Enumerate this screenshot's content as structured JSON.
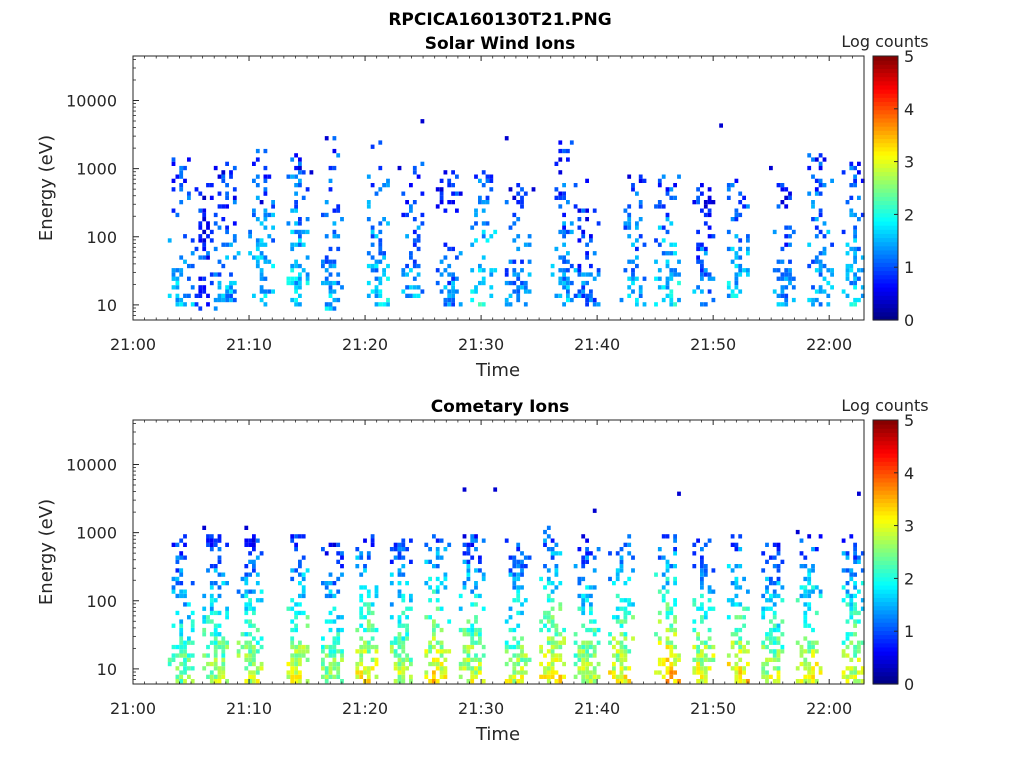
{
  "figure": {
    "title": "RPCICA160130T21.PNG"
  },
  "colors": {
    "axis": "#262626",
    "colormap": "jet"
  },
  "chart_data": [
    {
      "type": "heatmap",
      "title": "Solar Wind Ions",
      "xlabel": "Time",
      "ylabel": "Energy (eV)",
      "y_scale": "log",
      "ylim": [
        6,
        45000
      ],
      "xlim": [
        "21:00",
        "22:03"
      ],
      "x_ticks": [
        "21:00",
        "21:10",
        "21:20",
        "21:30",
        "21:40",
        "21:50",
        "22:00"
      ],
      "y_ticks": [
        "10",
        "100",
        "1000",
        "10000"
      ],
      "colorbar": {
        "label": "Log counts",
        "range": [
          0,
          5
        ],
        "ticks": [
          "0",
          "1",
          "2",
          "3",
          "4",
          "5"
        ]
      },
      "data_time_range": [
        "21:03",
        "22:03"
      ],
      "events": [
        {
          "time": "21:04",
          "energy_range": [
            10,
            1500
          ],
          "intensity": 1.4
        },
        {
          "time": "21:06",
          "energy_range": [
            8,
            600
          ],
          "intensity": 1.0
        },
        {
          "time": "21:08",
          "energy_range": [
            10,
            1200
          ],
          "intensity": 1.3
        },
        {
          "time": "21:11",
          "energy_range": [
            10,
            2000
          ],
          "intensity": 1.5
        },
        {
          "time": "21:14",
          "energy_range": [
            10,
            1800
          ],
          "intensity": 1.6
        },
        {
          "time": "21:17",
          "energy_range": [
            8,
            3000
          ],
          "intensity": 1.4
        },
        {
          "time": "21:21",
          "energy_range": [
            10,
            2500
          ],
          "intensity": 1.5
        },
        {
          "time": "21:24",
          "energy_range": [
            12,
            1500
          ],
          "intensity": 1.3
        },
        {
          "time": "21:27",
          "energy_range": [
            10,
            1000
          ],
          "intensity": 1.2
        },
        {
          "time": "21:30",
          "energy_range": [
            10,
            900
          ],
          "intensity": 1.7
        },
        {
          "time": "21:33",
          "energy_range": [
            10,
            700
          ],
          "intensity": 1.2
        },
        {
          "time": "21:37",
          "energy_range": [
            10,
            2500
          ],
          "intensity": 1.3
        },
        {
          "time": "21:39",
          "energy_range": [
            10,
            700
          ],
          "intensity": 1.1
        },
        {
          "time": "21:43",
          "energy_range": [
            10,
            900
          ],
          "intensity": 1.4
        },
        {
          "time": "21:46",
          "energy_range": [
            10,
            800
          ],
          "intensity": 1.6
        },
        {
          "time": "21:49",
          "energy_range": [
            10,
            600
          ],
          "intensity": 1.2
        },
        {
          "time": "21:52",
          "energy_range": [
            12,
            700
          ],
          "intensity": 1.5
        },
        {
          "time": "21:56",
          "energy_range": [
            10,
            700
          ],
          "intensity": 1.2
        },
        {
          "time": "21:59",
          "energy_range": [
            10,
            2000
          ],
          "intensity": 1.4
        },
        {
          "time": "22:02",
          "energy_range": [
            10,
            1200
          ],
          "intensity": 1.5
        }
      ]
    },
    {
      "type": "heatmap",
      "title": "Cometary Ions",
      "xlabel": "Time",
      "ylabel": "Energy (eV)",
      "y_scale": "log",
      "ylim": [
        6,
        45000
      ],
      "xlim": [
        "21:00",
        "22:03"
      ],
      "x_ticks": [
        "21:00",
        "21:10",
        "21:20",
        "21:30",
        "21:40",
        "21:50",
        "22:00"
      ],
      "y_ticks": [
        "10",
        "100",
        "1000",
        "10000"
      ],
      "colorbar": {
        "label": "Log counts",
        "range": [
          0,
          5
        ],
        "ticks": [
          "0",
          "1",
          "2",
          "3",
          "4",
          "5"
        ]
      },
      "data_time_range": [
        "21:03",
        "22:03"
      ],
      "events": [
        {
          "time": "21:04",
          "energy_range": [
            6,
            900
          ],
          "intensity": 2.0
        },
        {
          "time": "21:07",
          "energy_range": [
            6,
            1000
          ],
          "intensity": 2.2
        },
        {
          "time": "21:10",
          "energy_range": [
            6,
            900
          ],
          "intensity": 2.3
        },
        {
          "time": "21:14",
          "energy_range": [
            6,
            1000
          ],
          "intensity": 2.4
        },
        {
          "time": "21:17",
          "energy_range": [
            6,
            700
          ],
          "intensity": 2.2
        },
        {
          "time": "21:20",
          "energy_range": [
            6,
            1000
          ],
          "intensity": 2.5
        },
        {
          "time": "21:23",
          "energy_range": [
            6,
            800
          ],
          "intensity": 2.3
        },
        {
          "time": "21:26",
          "energy_range": [
            6,
            1000
          ],
          "intensity": 2.6
        },
        {
          "time": "21:29",
          "energy_range": [
            6,
            900
          ],
          "intensity": 2.4
        },
        {
          "time": "21:33",
          "energy_range": [
            6,
            800
          ],
          "intensity": 2.3
        },
        {
          "time": "21:36",
          "energy_range": [
            6,
            1200
          ],
          "intensity": 2.6
        },
        {
          "time": "21:39",
          "energy_range": [
            6,
            900
          ],
          "intensity": 2.3
        },
        {
          "time": "21:42",
          "energy_range": [
            6,
            1000
          ],
          "intensity": 2.5
        },
        {
          "time": "21:46",
          "energy_range": [
            6,
            900
          ],
          "intensity": 2.8
        },
        {
          "time": "21:49",
          "energy_range": [
            6,
            800
          ],
          "intensity": 2.5
        },
        {
          "time": "21:52",
          "energy_range": [
            6,
            900
          ],
          "intensity": 2.6
        },
        {
          "time": "21:55",
          "energy_range": [
            6,
            700
          ],
          "intensity": 2.3
        },
        {
          "time": "21:58",
          "energy_range": [
            6,
            900
          ],
          "intensity": 2.5
        },
        {
          "time": "22:02",
          "energy_range": [
            6,
            1000
          ],
          "intensity": 2.4
        }
      ]
    }
  ]
}
